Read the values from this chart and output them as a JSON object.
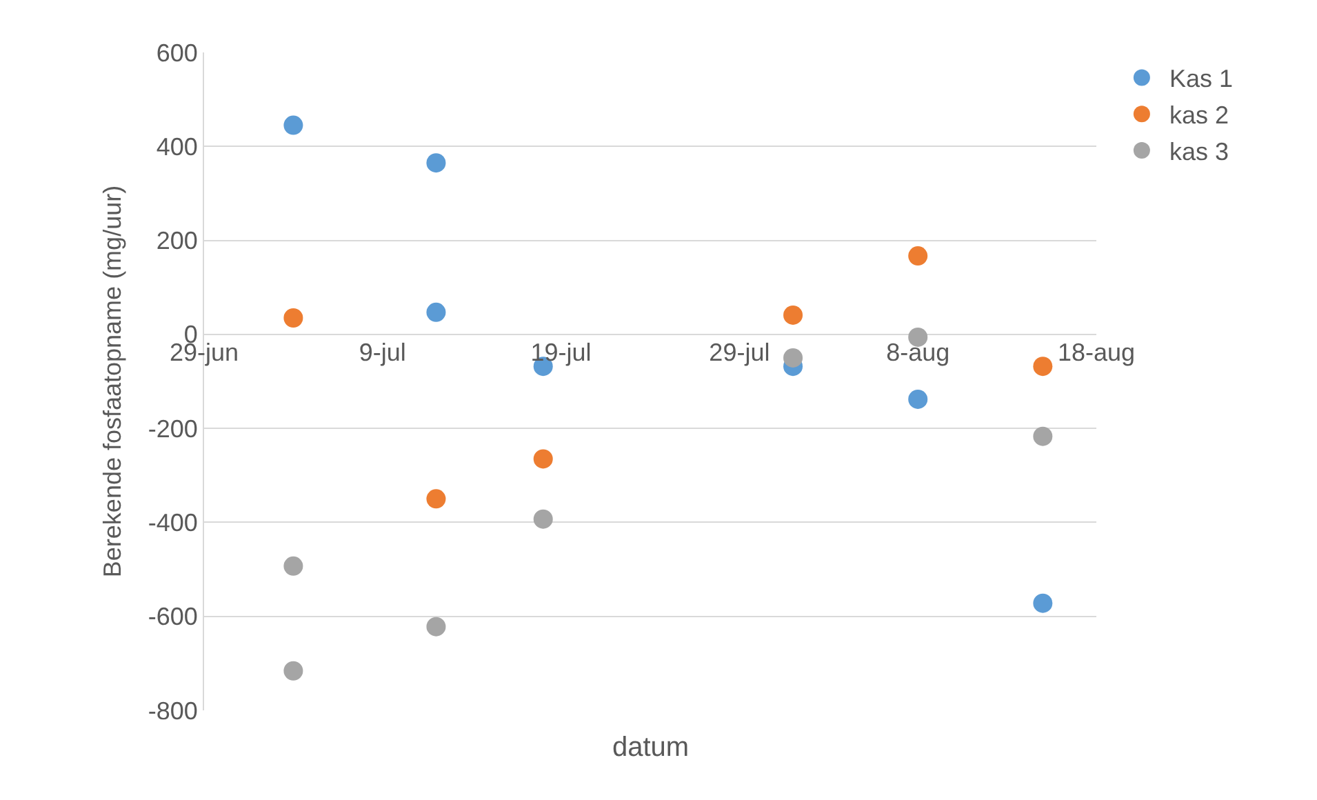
{
  "chart_data": {
    "type": "scatter",
    "xlabel": "datum",
    "ylabel": "Berekende fosfaatopname (mg/uur)",
    "xlim": [
      "--06-29",
      "--08-18"
    ],
    "xticks": [
      {
        "value": "--06-29",
        "label": "29-jun"
      },
      {
        "value": "--07-09",
        "label": "9-jul"
      },
      {
        "value": "--07-19",
        "label": "19-jul"
      },
      {
        "value": "--07-29",
        "label": "29-jul"
      },
      {
        "value": "--08-08",
        "label": "8-aug"
      },
      {
        "value": "--08-18",
        "label": "18-aug"
      }
    ],
    "ylim": [
      -800,
      600
    ],
    "yticks": [
      -800,
      -600,
      -400,
      -200,
      0,
      200,
      400,
      600
    ],
    "grid": "y",
    "legend": "top right",
    "marker": "circle",
    "series": [
      {
        "name": "Kas 1",
        "color": "#5b9bd5",
        "x": [
          "--07-04",
          "--07-12",
          "--07-12",
          "--07-18",
          "--08-01",
          "--08-08",
          "--08-15"
        ],
        "values": [
          445,
          365,
          47,
          -68,
          -68,
          -138,
          -572
        ]
      },
      {
        "name": "kas 2",
        "color": "#ed7d31",
        "x": [
          "--07-04",
          "--07-12",
          "--07-18",
          "--08-01",
          "--08-08",
          "--08-15"
        ],
        "values": [
          35,
          -350,
          -265,
          41,
          167,
          -68
        ]
      },
      {
        "name": "kas 3",
        "color": "#a5a5a5",
        "x": [
          "--07-04",
          "--07-04",
          "--07-12",
          "--07-18",
          "--08-01",
          "--08-08",
          "--08-15"
        ],
        "values": [
          -493,
          -716,
          -622,
          -393,
          -50,
          -6,
          -217
        ]
      }
    ]
  }
}
